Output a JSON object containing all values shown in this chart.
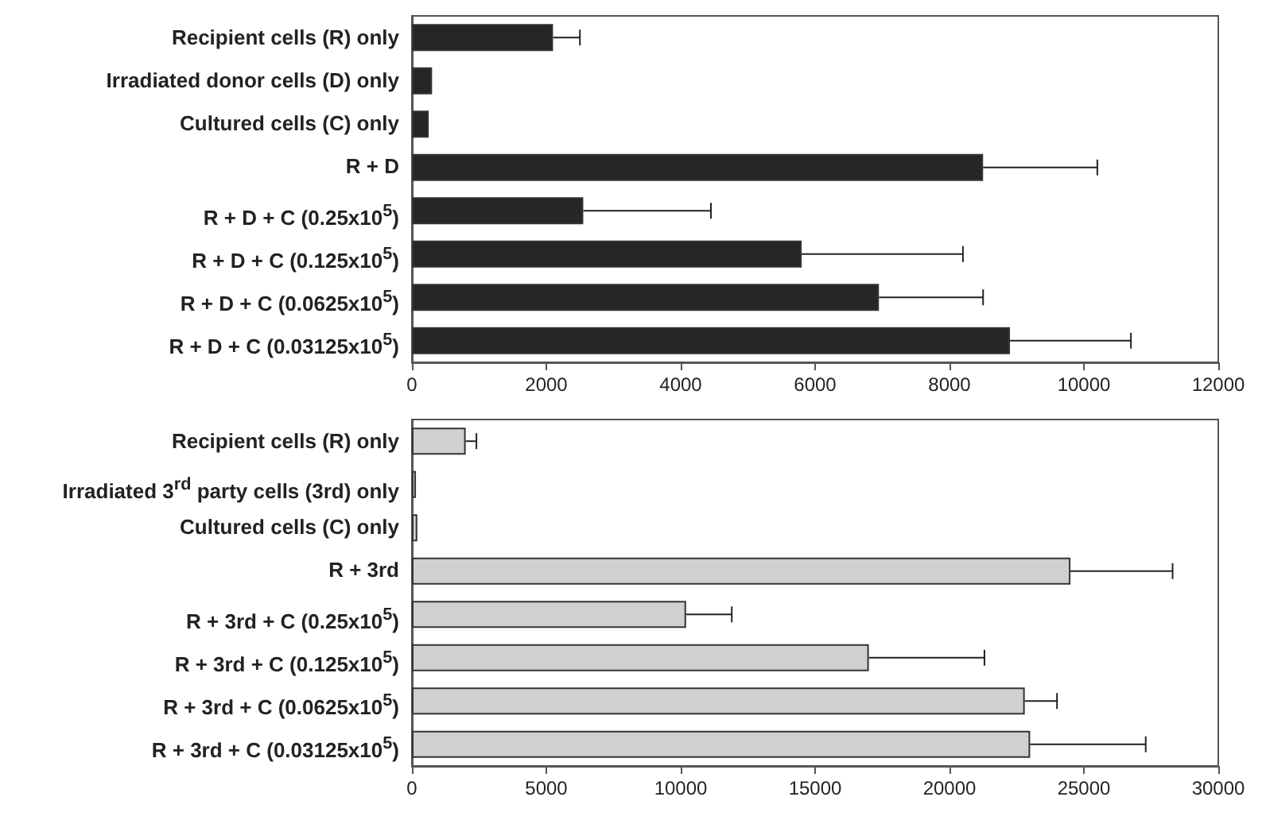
{
  "chart_data": [
    {
      "type": "bar",
      "orientation": "horizontal",
      "categories": [
        "Recipient cells (R) only",
        "Irradiated donor cells (D) only",
        "Cultured cells (C) only",
        "R + D",
        "R + D + C (0.25x10$^{5}$)",
        "R + D + C (0.125x10$^{5}$)",
        "R + D + C (0.0625x10$^{5}$)",
        "R + D + C (0.03125x10$^{5}$)"
      ],
      "values": [
        2100,
        300,
        250,
        8500,
        2550,
        5800,
        6950,
        8900
      ],
      "errors": [
        [
          2100,
          2500
        ],
        null,
        null,
        [
          8500,
          10200
        ],
        [
          2550,
          4450
        ],
        [
          5800,
          8200
        ],
        [
          6950,
          8500
        ],
        [
          8900,
          10700
        ]
      ],
      "color": "#262626",
      "xlim": [
        0,
        12000
      ],
      "xticks": [
        0,
        2000,
        4000,
        6000,
        8000,
        10000,
        12000
      ],
      "grid": false
    },
    {
      "type": "bar",
      "orientation": "horizontal",
      "categories": [
        "Recipient cells (R) only",
        "Irradiated 3$^{rd}$ party cells (3rd) only",
        "Cultured cells (C) only",
        "R + 3rd",
        "R + 3rd + C (0.25x10$^{5}$)",
        "R + 3rd + C (0.125x10$^{5}$)",
        "R + 3rd + C (0.0625x10$^{5}$)",
        "R + 3rd + C (0.03125x10$^{5}$)"
      ],
      "values": [
        2000,
        150,
        200,
        24500,
        10200,
        17000,
        22800,
        23000
      ],
      "errors": [
        [
          2000,
          2400
        ],
        null,
        null,
        [
          24500,
          28300
        ],
        [
          10200,
          11900
        ],
        [
          17000,
          21300
        ],
        [
          22800,
          24000
        ],
        [
          23000,
          27300
        ]
      ],
      "color": "#d0d0d0",
      "xlim": [
        0,
        30000
      ],
      "xticks": [
        0,
        5000,
        10000,
        15000,
        20000,
        25000,
        30000
      ],
      "grid": false
    }
  ]
}
